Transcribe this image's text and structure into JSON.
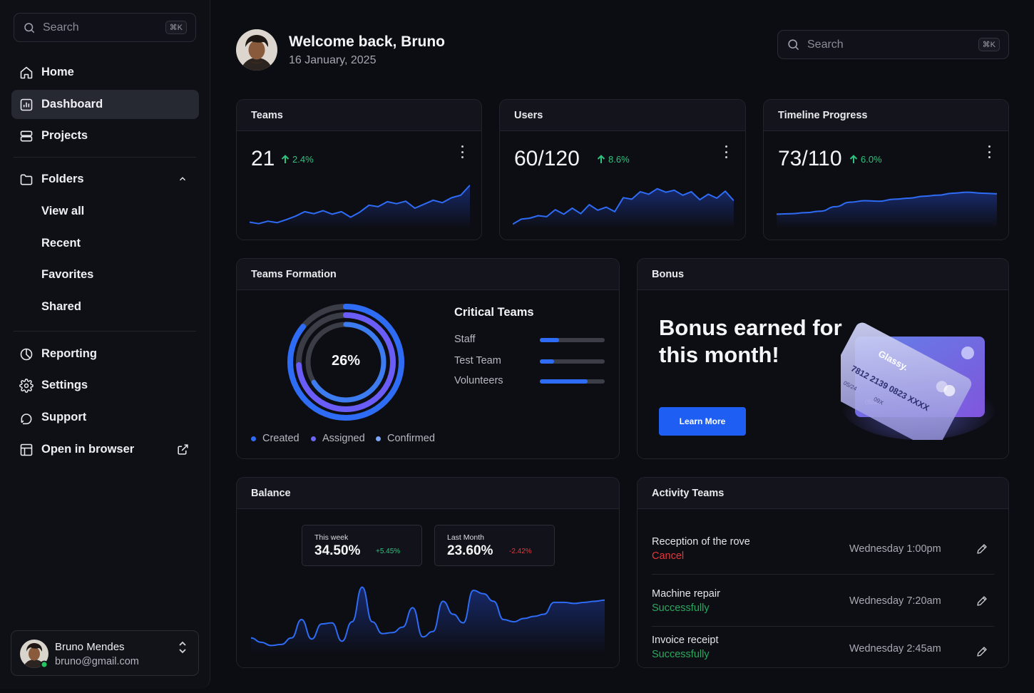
{
  "sidebar": {
    "search": {
      "placeholder": "Search",
      "shortcut": "⌘K"
    },
    "nav": [
      {
        "label": "Home",
        "icon": "home-icon"
      },
      {
        "label": "Dashboard",
        "icon": "dashboard-icon",
        "active": true
      },
      {
        "label": "Projects",
        "icon": "projects-icon"
      }
    ],
    "folders": {
      "label": "Folders",
      "icon": "folder-icon",
      "items": [
        "View all",
        "Recent",
        "Favorites",
        "Shared"
      ]
    },
    "nav_bottom": [
      {
        "label": "Reporting",
        "icon": "pie-chart-icon"
      },
      {
        "label": "Settings",
        "icon": "gear-icon"
      },
      {
        "label": "Support",
        "icon": "support-icon"
      },
      {
        "label": "Open in browser",
        "icon": "browser-icon"
      }
    ],
    "user": {
      "name": "Bruno Mendes",
      "email": "bruno@gmail.com",
      "status": "online"
    }
  },
  "header": {
    "title": "Welcome back, Bruno",
    "date": "16 January, 2025",
    "search": {
      "placeholder": "Search",
      "shortcut": "⌘K"
    }
  },
  "stats": [
    {
      "title": "Teams",
      "value": "21",
      "delta": "2.4%",
      "trend": [
        12,
        9,
        14,
        11,
        17,
        24,
        33,
        29,
        35,
        28,
        33,
        22,
        32,
        46,
        43,
        53,
        49,
        54,
        40,
        48,
        56,
        51,
        61,
        66,
        86
      ]
    },
    {
      "title": "Users",
      "value": "60/120",
      "delta": "8.6%",
      "trend": [
        8,
        18,
        20,
        25,
        23,
        37,
        28,
        40,
        29,
        47,
        36,
        42,
        33,
        61,
        58,
        73,
        68,
        79,
        72,
        76,
        66,
        73,
        57,
        68,
        60,
        74,
        55
      ]
    },
    {
      "title": "Timeline Progress",
      "value": "73/110",
      "delta": "6.0%",
      "trend": [
        28,
        29,
        31,
        34,
        43,
        52,
        55,
        54,
        58,
        60,
        64,
        66,
        70,
        72,
        70,
        69
      ]
    }
  ],
  "teams_formation": {
    "title": "Teams Formation",
    "center_label": "26%",
    "rings": [
      {
        "name": "Created",
        "color": "#2e6cf5",
        "value": 0.86
      },
      {
        "name": "Assigned",
        "color": "#6a5cf6",
        "value": 0.74
      },
      {
        "name": "Confirmed",
        "color": "#3c7cf0",
        "value": 0.66
      }
    ],
    "critical_title": "Critical Teams",
    "critical": [
      {
        "label": "Staff",
        "value": 0.3
      },
      {
        "label": "Test Team",
        "value": 0.22
      },
      {
        "label": "Volunteers",
        "value": 0.74
      }
    ],
    "legend": [
      {
        "label": "Created",
        "color": "#2e6cf5"
      },
      {
        "label": "Assigned",
        "color": "#6b66f3"
      },
      {
        "label": "Confirmed",
        "color": "#7aa6f5"
      }
    ]
  },
  "bonus": {
    "title": "Bonus",
    "headline": "Bonus earned for this month!",
    "button": "Learn More",
    "card": {
      "brand": "Glassy.",
      "number": "7812 2139 0823 XXXX",
      "expiry": "05/24",
      "cvv": "09X"
    }
  },
  "balance": {
    "title": "Balance",
    "this_week": {
      "label": "This week",
      "value": "34.50%",
      "change": "+5.45%"
    },
    "last_month": {
      "label": "Last Month",
      "value": "23.60%",
      "change": "-2.42%"
    },
    "trend": [
      14,
      10,
      7,
      8,
      14,
      31,
      13,
      27,
      28,
      11,
      29,
      61,
      29,
      18,
      19,
      24,
      42,
      15,
      20,
      48,
      36,
      28,
      58,
      55,
      48,
      31,
      29,
      32,
      34,
      36,
      47,
      47,
      46,
      47,
      48,
      49
    ]
  },
  "activity": {
    "title": "Activity Teams",
    "items": [
      {
        "name": "Reception of the rove",
        "status": "Cancel",
        "status_color": "#e5373a",
        "time": "Wednesday 1:00pm"
      },
      {
        "name": "Machine repair",
        "status": "Successfully",
        "status_color": "#2aa860",
        "time": "Wednesday 7:20am"
      },
      {
        "name": "Invoice receipt",
        "status": "Successfully",
        "status_color": "#2aa860",
        "time": "Wednesday 2:45am"
      }
    ]
  },
  "colors": {
    "accent": "#2e6cf5",
    "positive": "#2ec27e",
    "negative": "#e5373a"
  }
}
